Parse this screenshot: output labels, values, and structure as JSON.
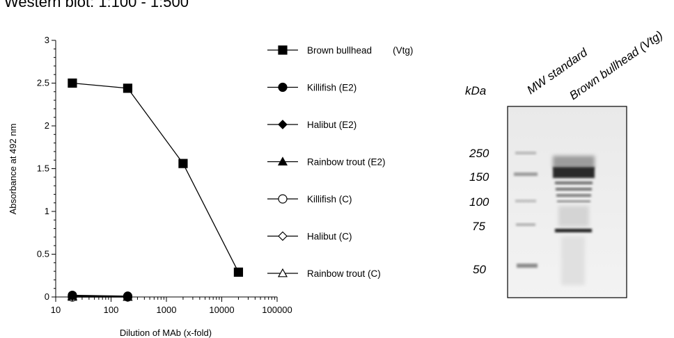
{
  "title": "Western blot:   1:100 - 1:500",
  "chart_data": {
    "type": "scatter",
    "xlabel": "Dilution of MAb (x-fold)",
    "ylabel": "Absorbance at  492 nm",
    "xscale": "log",
    "xlim": [
      10,
      100000
    ],
    "ylim": [
      0,
      3
    ],
    "x_ticks": [
      "10",
      "100",
      "1000",
      "10000",
      "100000"
    ],
    "y_ticks": [
      "0",
      "0.5",
      "1",
      "1.5",
      "2",
      "2.5",
      "3"
    ],
    "grid": false,
    "legend_placement": "right",
    "series": [
      {
        "name": "Brown bullhead        (Vtg)",
        "marker": "square-filled",
        "x": [
          20,
          200,
          2000,
          20000
        ],
        "y": [
          2.5,
          2.44,
          1.56,
          0.29
        ]
      },
      {
        "name": "Killifish (E2)",
        "marker": "circle-filled",
        "x": [
          20,
          200
        ],
        "y": [
          0.02,
          0.01
        ]
      },
      {
        "name": "Halibut (E2)",
        "marker": "diamond-filled",
        "x": [
          20,
          200
        ],
        "y": [
          0.01,
          0.0
        ]
      },
      {
        "name": "Rainbow trout (E2)",
        "marker": "triangle-filled",
        "x": [
          20,
          200
        ],
        "y": [
          0.01,
          0.0
        ]
      },
      {
        "name": "Killifish (C)",
        "marker": "circle-open",
        "x": [
          20,
          200
        ],
        "y": [
          0.0,
          0.0
        ]
      },
      {
        "name": "Halibut (C)",
        "marker": "diamond-open",
        "x": [
          20,
          200
        ],
        "y": [
          0.0,
          0.0
        ]
      },
      {
        "name": "Rainbow trout (C)",
        "marker": "triangle-open",
        "x": [
          20,
          200
        ],
        "y": [
          0.0,
          0.0
        ]
      }
    ]
  },
  "blot": {
    "unit_label": "kDa",
    "lane_labels": [
      "MW standard",
      "Brown bullhead (Vtg)"
    ],
    "mw_labels": [
      "250",
      "150",
      "100",
      "75",
      "50"
    ]
  }
}
